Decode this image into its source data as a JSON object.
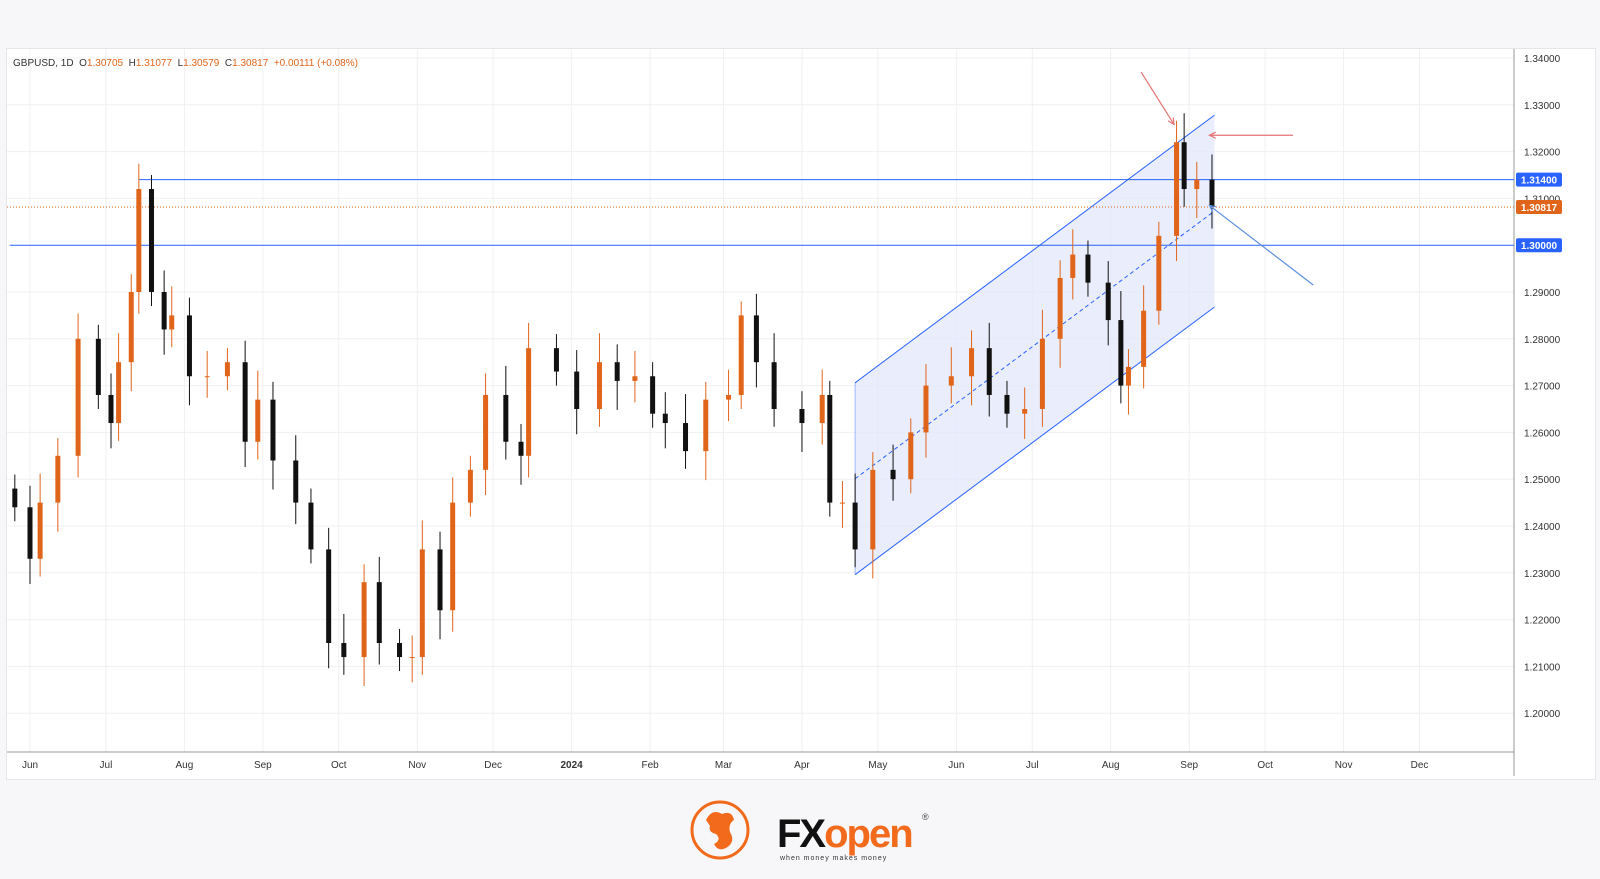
{
  "legend": {
    "symbol": "GBPUSD, 1D",
    "o_label": "O",
    "o": "1.30705",
    "h_label": "H",
    "h": "1.31077",
    "l_label": "L",
    "l": "1.30579",
    "c_label": "C",
    "c": "1.30817",
    "change": "+0.00111 (+0.08%)"
  },
  "colors": {
    "up": "#e0651b",
    "down": "#111111",
    "level": "#2962ff",
    "last": "#e0651b",
    "channel_fill": "#dfe6fb",
    "arrow_red": "#e57373",
    "arrow_blue": "#5b8ede"
  },
  "chart_data": {
    "type": "candlestick",
    "title": "",
    "ylim": [
      1.195,
      1.345
    ],
    "xlim": [
      "2023-05-24",
      "2024-12-31"
    ],
    "y_ticks": [
      "1.34000",
      "1.33000",
      "1.32000",
      "1.31000",
      "1.29000",
      "1.28000",
      "1.27000",
      "1.26000",
      "1.25000",
      "1.24000",
      "1.23000",
      "1.22000",
      "1.21000",
      "1.20000"
    ],
    "x_ticks": [
      [
        "2023-06-01",
        "Jun"
      ],
      [
        "2023-07-01",
        "Jul"
      ],
      [
        "2023-08-01",
        "Aug"
      ],
      [
        "2023-09-01",
        "Sep"
      ],
      [
        "2023-10-01",
        "Oct"
      ],
      [
        "2023-11-01",
        "Nov"
      ],
      [
        "2023-12-01",
        "Dec"
      ],
      [
        "2024-01-01",
        "2024"
      ],
      [
        "2024-02-01",
        "Feb"
      ],
      [
        "2024-03-01",
        "Mar"
      ],
      [
        "2024-04-01",
        "Apr"
      ],
      [
        "2024-05-01",
        "May"
      ],
      [
        "2024-06-01",
        "Jun"
      ],
      [
        "2024-07-01",
        "Jul"
      ],
      [
        "2024-08-01",
        "Aug"
      ],
      [
        "2024-09-01",
        "Sep"
      ],
      [
        "2024-10-01",
        "Oct"
      ],
      [
        "2024-11-01",
        "Nov"
      ],
      [
        "2024-12-01",
        "Dec"
      ]
    ],
    "closes": [
      [
        "2023-05-26",
        1.244
      ],
      [
        "2023-06-01",
        1.233
      ],
      [
        "2023-06-05",
        1.245
      ],
      [
        "2023-06-12",
        1.255
      ],
      [
        "2023-06-20",
        1.28
      ],
      [
        "2023-06-28",
        1.268
      ],
      [
        "2023-07-03",
        1.262
      ],
      [
        "2023-07-06",
        1.275
      ],
      [
        "2023-07-11",
        1.29
      ],
      [
        "2023-07-14",
        1.312
      ],
      [
        "2023-07-19",
        1.29
      ],
      [
        "2023-07-24",
        1.282
      ],
      [
        "2023-07-27",
        1.285
      ],
      [
        "2023-08-03",
        1.272
      ],
      [
        "2023-08-10",
        1.272
      ],
      [
        "2023-08-18",
        1.275
      ],
      [
        "2023-08-25",
        1.258
      ],
      [
        "2023-08-30",
        1.267
      ],
      [
        "2023-09-05",
        1.254
      ],
      [
        "2023-09-14",
        1.245
      ],
      [
        "2023-09-20",
        1.235
      ],
      [
        "2023-09-27",
        1.215
      ],
      [
        "2023-10-03",
        1.212
      ],
      [
        "2023-10-11",
        1.228
      ],
      [
        "2023-10-17",
        1.215
      ],
      [
        "2023-10-25",
        1.212
      ],
      [
        "2023-10-30",
        1.212
      ],
      [
        "2023-11-03",
        1.235
      ],
      [
        "2023-11-10",
        1.222
      ],
      [
        "2023-11-15",
        1.245
      ],
      [
        "2023-11-22",
        1.252
      ],
      [
        "2023-11-28",
        1.268
      ],
      [
        "2023-12-06",
        1.258
      ],
      [
        "2023-12-12",
        1.255
      ],
      [
        "2023-12-15",
        1.278
      ],
      [
        "2023-12-26",
        1.273
      ],
      [
        "2024-01-03",
        1.265
      ],
      [
        "2024-01-12",
        1.275
      ],
      [
        "2024-01-19",
        1.271
      ],
      [
        "2024-01-26",
        1.272
      ],
      [
        "2024-02-02",
        1.264
      ],
      [
        "2024-02-07",
        1.262
      ],
      [
        "2024-02-15",
        1.256
      ],
      [
        "2024-02-23",
        1.267
      ],
      [
        "2024-03-03",
        1.268
      ],
      [
        "2024-03-08",
        1.285
      ],
      [
        "2024-03-14",
        1.275
      ],
      [
        "2024-03-21",
        1.265
      ],
      [
        "2024-04-01",
        1.262
      ],
      [
        "2024-04-09",
        1.268
      ],
      [
        "2024-04-12",
        1.245
      ],
      [
        "2024-04-17",
        1.245
      ],
      [
        "2024-04-22",
        1.235
      ],
      [
        "2024-04-29",
        1.252
      ],
      [
        "2024-05-07",
        1.25
      ],
      [
        "2024-05-14",
        1.26
      ],
      [
        "2024-05-20",
        1.27
      ],
      [
        "2024-05-30",
        1.272
      ],
      [
        "2024-06-07",
        1.278
      ],
      [
        "2024-06-14",
        1.268
      ],
      [
        "2024-06-21",
        1.264
      ],
      [
        "2024-06-28",
        1.265
      ],
      [
        "2024-07-05",
        1.28
      ],
      [
        "2024-07-12",
        1.293
      ],
      [
        "2024-07-17",
        1.298
      ],
      [
        "2024-07-23",
        1.292
      ],
      [
        "2024-07-31",
        1.284
      ],
      [
        "2024-08-05",
        1.27
      ],
      [
        "2024-08-08",
        1.274
      ],
      [
        "2024-08-14",
        1.286
      ],
      [
        "2024-08-20",
        1.302
      ],
      [
        "2024-08-27",
        1.322
      ],
      [
        "2024-08-30",
        1.312
      ],
      [
        "2024-09-04",
        1.314
      ],
      [
        "2024-09-10",
        1.30817
      ]
    ],
    "levels": [
      {
        "price": 1.314,
        "from": "2023-07-14",
        "label": "1.31400"
      },
      {
        "price": 1.3,
        "from": "2023-05-24",
        "label": "1.30000"
      }
    ],
    "last_price": {
      "price": 1.30817,
      "label": "1.30817"
    },
    "channel": {
      "start": "2024-04-22",
      "end": "2024-09-11",
      "lower": [
        1.2296,
        1.2868
      ],
      "upper": [
        1.2706,
        1.3278
      ]
    },
    "arrows": [
      {
        "color": "red",
        "from": [
          "2024-08-13",
          1.337
        ],
        "to": [
          "2024-08-26",
          1.3258
        ]
      },
      {
        "color": "red",
        "from": [
          "2024-10-12",
          1.3235
        ],
        "to": [
          "2024-09-09",
          1.3235
        ]
      },
      {
        "color": "blue",
        "from": [
          "2024-10-20",
          1.2915
        ],
        "to": [
          "2024-09-09",
          1.3085
        ]
      }
    ]
  },
  "logo": {
    "fx": "FX",
    "open": "open",
    "tagline": "when money makes money",
    "reg": "®"
  }
}
